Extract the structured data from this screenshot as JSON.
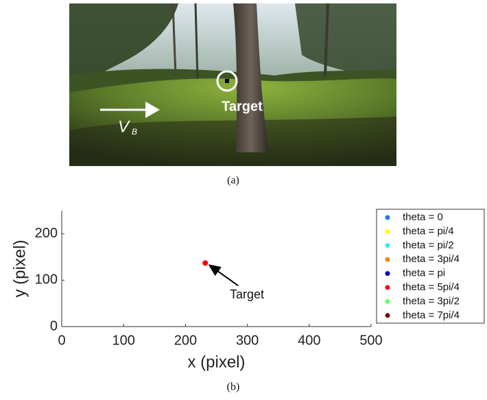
{
  "photo": {
    "target_label": "Target",
    "velocity_label": "V",
    "velocity_subscript": "B",
    "caption": "(a)"
  },
  "chart_data": {
    "type": "scatter",
    "xlabel": "x (pixel)",
    "ylabel": "y (pixel)",
    "xlim": [
      0,
      500
    ],
    "ylim": [
      0,
      250
    ],
    "xticks": [
      0,
      100,
      200,
      300,
      400,
      500
    ],
    "yticks": [
      0,
      100,
      200
    ],
    "series": [
      {
        "name": "theta = 0",
        "color": "#1f7be0",
        "x": [],
        "values": []
      },
      {
        "name": "theta = pi/4",
        "color": "#ffff00",
        "x": [],
        "values": []
      },
      {
        "name": "theta = pi/2",
        "color": "#33e6ff",
        "x": [],
        "values": []
      },
      {
        "name": "theta = 3pi/4",
        "color": "#ff8000",
        "x": [],
        "values": []
      },
      {
        "name": "theta = pi",
        "color": "#0000cc",
        "x": [],
        "values": []
      },
      {
        "name": "theta = 5pi/4",
        "color": "#ff0000",
        "x": [
          232
        ],
        "values": [
          137
        ]
      },
      {
        "name": "theta = 3pi/2",
        "color": "#66ff66",
        "x": [],
        "values": []
      },
      {
        "name": "theta = 7pi/4",
        "color": "#800000",
        "x": [],
        "values": []
      }
    ],
    "annotation": "Target",
    "legend": "outside-right"
  },
  "caption": "(b)"
}
